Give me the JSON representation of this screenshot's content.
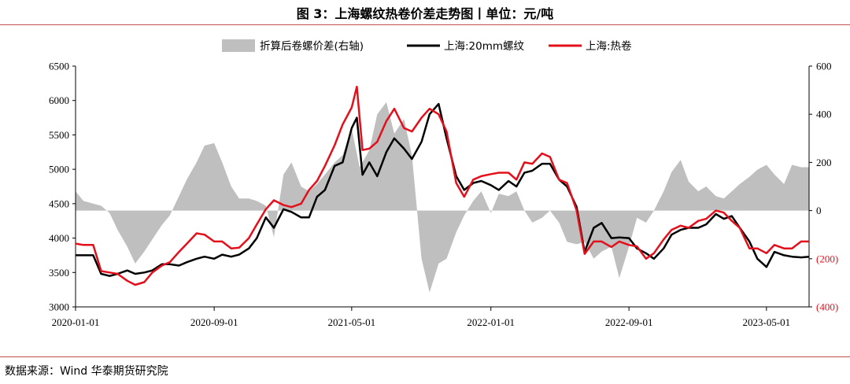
{
  "title": "图 3：上海螺纹热卷价差走势图丨单位：元/吨",
  "source": "数据来源：Wind  华泰期货研究院",
  "colors": {
    "area": "#bfbfbf",
    "rebar": "#000000",
    "hrc": "#e3101c",
    "rule": "#c0504d"
  },
  "chart_data": {
    "type": "line",
    "x_range": [
      "2020-01-01",
      "2023-07-15"
    ],
    "x_ticks": [
      "2020-01-01",
      "2020-09-01",
      "2021-05-01",
      "2022-01-01",
      "2022-09-01",
      "2023-05-01"
    ],
    "y_left": {
      "min": 3000,
      "max": 6500,
      "ticks": [
        "3000",
        "3500",
        "4000",
        "4500",
        "5000",
        "5500",
        "6000",
        "6500"
      ]
    },
    "y_right": {
      "min": -400,
      "max": 600,
      "ticks": [
        {
          "value": 600,
          "label": "600"
        },
        {
          "value": 400,
          "label": "400"
        },
        {
          "value": 200,
          "label": "200"
        },
        {
          "value": 0,
          "label": "0"
        },
        {
          "value": -200,
          "label": "(200)"
        },
        {
          "value": -400,
          "label": "(400)"
        }
      ]
    },
    "legend": [
      "折算后卷螺价差(右轴)",
      "上海:20mm螺纹",
      "上海:热卷"
    ],
    "series": [
      {
        "name": "折算后卷螺价差(右轴)",
        "axis": "right",
        "kind": "area",
        "points": [
          [
            "2020-01-01",
            80
          ],
          [
            "2020-01-15",
            40
          ],
          [
            "2020-02-15",
            20
          ],
          [
            "2020-03-01",
            -10
          ],
          [
            "2020-03-15",
            -80
          ],
          [
            "2020-04-01",
            -150
          ],
          [
            "2020-04-15",
            -220
          ],
          [
            "2020-05-01",
            -170
          ],
          [
            "2020-05-15",
            -120
          ],
          [
            "2020-06-01",
            -60
          ],
          [
            "2020-06-15",
            -20
          ],
          [
            "2020-07-01",
            60
          ],
          [
            "2020-07-15",
            130
          ],
          [
            "2020-08-01",
            200
          ],
          [
            "2020-08-15",
            270
          ],
          [
            "2020-09-01",
            280
          ],
          [
            "2020-09-15",
            200
          ],
          [
            "2020-10-01",
            100
          ],
          [
            "2020-10-15",
            50
          ],
          [
            "2020-11-01",
            50
          ],
          [
            "2020-11-15",
            40
          ],
          [
            "2020-12-01",
            20
          ],
          [
            "2020-12-15",
            -110
          ],
          [
            "2021-01-01",
            150
          ],
          [
            "2021-01-15",
            200
          ],
          [
            "2021-02-01",
            100
          ],
          [
            "2021-02-15",
            80
          ],
          [
            "2021-03-01",
            110
          ],
          [
            "2021-03-15",
            150
          ],
          [
            "2021-04-01",
            200
          ],
          [
            "2021-04-15",
            230
          ],
          [
            "2021-05-01",
            340
          ],
          [
            "2021-05-15",
            180
          ],
          [
            "2021-06-01",
            250
          ],
          [
            "2021-06-15",
            400
          ],
          [
            "2021-07-01",
            450
          ],
          [
            "2021-07-15",
            320
          ],
          [
            "2021-08-01",
            380
          ],
          [
            "2021-08-15",
            230
          ],
          [
            "2021-09-01",
            -200
          ],
          [
            "2021-09-15",
            -340
          ],
          [
            "2021-10-01",
            -220
          ],
          [
            "2021-10-15",
            -200
          ],
          [
            "2021-11-01",
            -90
          ],
          [
            "2021-11-15",
            -20
          ],
          [
            "2021-12-01",
            40
          ],
          [
            "2021-12-15",
            80
          ],
          [
            "2022-01-01",
            -10
          ],
          [
            "2022-01-15",
            70
          ],
          [
            "2022-02-01",
            60
          ],
          [
            "2022-02-15",
            80
          ],
          [
            "2022-03-01",
            0
          ],
          [
            "2022-03-15",
            -50
          ],
          [
            "2022-04-01",
            -30
          ],
          [
            "2022-04-15",
            0
          ],
          [
            "2022-05-01",
            -50
          ],
          [
            "2022-05-15",
            -130
          ],
          [
            "2022-06-01",
            -140
          ],
          [
            "2022-06-15",
            -130
          ],
          [
            "2022-07-01",
            -200
          ],
          [
            "2022-07-15",
            -170
          ],
          [
            "2022-08-01",
            -150
          ],
          [
            "2022-08-15",
            -280
          ],
          [
            "2022-09-01",
            -150
          ],
          [
            "2022-09-15",
            -30
          ],
          [
            "2022-10-01",
            -50
          ],
          [
            "2022-10-15",
            0
          ],
          [
            "2022-11-01",
            80
          ],
          [
            "2022-11-15",
            160
          ],
          [
            "2022-12-01",
            210
          ],
          [
            "2022-12-15",
            120
          ],
          [
            "2023-01-01",
            80
          ],
          [
            "2023-01-15",
            100
          ],
          [
            "2023-02-01",
            60
          ],
          [
            "2023-02-15",
            50
          ],
          [
            "2023-03-01",
            80
          ],
          [
            "2023-03-15",
            110
          ],
          [
            "2023-04-01",
            140
          ],
          [
            "2023-04-15",
            170
          ],
          [
            "2023-05-01",
            190
          ],
          [
            "2023-05-15",
            150
          ],
          [
            "2023-06-01",
            110
          ],
          [
            "2023-06-15",
            190
          ],
          [
            "2023-07-01",
            180
          ],
          [
            "2023-07-15",
            180
          ]
        ]
      },
      {
        "name": "上海:20mm螺纹",
        "axis": "left",
        "kind": "line",
        "points": [
          [
            "2020-01-01",
            3750
          ],
          [
            "2020-01-15",
            3750
          ],
          [
            "2020-02-01",
            3750
          ],
          [
            "2020-02-15",
            3480
          ],
          [
            "2020-03-01",
            3450
          ],
          [
            "2020-03-15",
            3480
          ],
          [
            "2020-04-01",
            3530
          ],
          [
            "2020-04-15",
            3480
          ],
          [
            "2020-05-01",
            3500
          ],
          [
            "2020-05-15",
            3530
          ],
          [
            "2020-06-01",
            3620
          ],
          [
            "2020-06-15",
            3620
          ],
          [
            "2020-07-01",
            3600
          ],
          [
            "2020-07-15",
            3650
          ],
          [
            "2020-08-01",
            3700
          ],
          [
            "2020-08-15",
            3730
          ],
          [
            "2020-09-01",
            3700
          ],
          [
            "2020-09-15",
            3760
          ],
          [
            "2020-10-01",
            3730
          ],
          [
            "2020-10-15",
            3760
          ],
          [
            "2020-11-01",
            3850
          ],
          [
            "2020-11-15",
            4000
          ],
          [
            "2020-12-01",
            4300
          ],
          [
            "2020-12-15",
            4150
          ],
          [
            "2021-01-01",
            4420
          ],
          [
            "2021-01-15",
            4380
          ],
          [
            "2021-02-01",
            4300
          ],
          [
            "2021-02-15",
            4300
          ],
          [
            "2021-03-01",
            4600
          ],
          [
            "2021-03-15",
            4700
          ],
          [
            "2021-04-01",
            5050
          ],
          [
            "2021-04-15",
            5100
          ],
          [
            "2021-05-01",
            5600
          ],
          [
            "2021-05-10",
            5750
          ],
          [
            "2021-05-20",
            4920
          ],
          [
            "2021-06-01",
            5100
          ],
          [
            "2021-06-15",
            4900
          ],
          [
            "2021-07-01",
            5250
          ],
          [
            "2021-07-15",
            5450
          ],
          [
            "2021-08-01",
            5300
          ],
          [
            "2021-08-15",
            5150
          ],
          [
            "2021-09-01",
            5400
          ],
          [
            "2021-09-15",
            5800
          ],
          [
            "2021-10-01",
            5950
          ],
          [
            "2021-10-15",
            5450
          ],
          [
            "2021-11-01",
            4900
          ],
          [
            "2021-11-15",
            4700
          ],
          [
            "2021-12-01",
            4800
          ],
          [
            "2021-12-15",
            4830
          ],
          [
            "2022-01-01",
            4770
          ],
          [
            "2022-01-15",
            4700
          ],
          [
            "2022-02-01",
            4830
          ],
          [
            "2022-02-15",
            4750
          ],
          [
            "2022-03-01",
            4950
          ],
          [
            "2022-03-15",
            4980
          ],
          [
            "2022-04-01",
            5080
          ],
          [
            "2022-04-15",
            5080
          ],
          [
            "2022-05-01",
            4850
          ],
          [
            "2022-05-15",
            4750
          ],
          [
            "2022-06-01",
            4450
          ],
          [
            "2022-06-15",
            3800
          ],
          [
            "2022-07-01",
            4150
          ],
          [
            "2022-07-15",
            4220
          ],
          [
            "2022-08-01",
            4000
          ],
          [
            "2022-08-15",
            4010
          ],
          [
            "2022-09-01",
            4000
          ],
          [
            "2022-09-15",
            3850
          ],
          [
            "2022-10-01",
            3780
          ],
          [
            "2022-10-15",
            3700
          ],
          [
            "2022-11-01",
            3850
          ],
          [
            "2022-11-15",
            4050
          ],
          [
            "2022-12-01",
            4120
          ],
          [
            "2022-12-15",
            4150
          ],
          [
            "2023-01-01",
            4150
          ],
          [
            "2023-01-15",
            4200
          ],
          [
            "2023-02-01",
            4350
          ],
          [
            "2023-02-15",
            4280
          ],
          [
            "2023-03-01",
            4320
          ],
          [
            "2023-03-15",
            4150
          ],
          [
            "2023-04-01",
            3950
          ],
          [
            "2023-04-15",
            3700
          ],
          [
            "2023-05-01",
            3580
          ],
          [
            "2023-05-15",
            3800
          ],
          [
            "2023-06-01",
            3750
          ],
          [
            "2023-06-15",
            3730
          ],
          [
            "2023-07-01",
            3720
          ],
          [
            "2023-07-15",
            3730
          ]
        ]
      },
      {
        "name": "上海:热卷",
        "axis": "left",
        "kind": "line",
        "points": [
          [
            "2020-01-01",
            3920
          ],
          [
            "2020-01-15",
            3900
          ],
          [
            "2020-02-01",
            3900
          ],
          [
            "2020-02-15",
            3520
          ],
          [
            "2020-03-01",
            3500
          ],
          [
            "2020-03-15",
            3480
          ],
          [
            "2020-04-01",
            3380
          ],
          [
            "2020-04-15",
            3320
          ],
          [
            "2020-05-01",
            3360
          ],
          [
            "2020-05-15",
            3500
          ],
          [
            "2020-06-01",
            3600
          ],
          [
            "2020-06-15",
            3650
          ],
          [
            "2020-07-01",
            3800
          ],
          [
            "2020-07-15",
            3920
          ],
          [
            "2020-08-01",
            4070
          ],
          [
            "2020-08-15",
            4050
          ],
          [
            "2020-09-01",
            3950
          ],
          [
            "2020-09-15",
            3950
          ],
          [
            "2020-10-01",
            3850
          ],
          [
            "2020-10-15",
            3860
          ],
          [
            "2020-11-01",
            4000
          ],
          [
            "2020-11-15",
            4200
          ],
          [
            "2020-12-01",
            4420
          ],
          [
            "2020-12-15",
            4550
          ],
          [
            "2021-01-01",
            4480
          ],
          [
            "2021-01-15",
            4450
          ],
          [
            "2021-02-01",
            4500
          ],
          [
            "2021-02-15",
            4700
          ],
          [
            "2021-03-01",
            4830
          ],
          [
            "2021-03-15",
            5050
          ],
          [
            "2021-04-01",
            5350
          ],
          [
            "2021-04-15",
            5650
          ],
          [
            "2021-05-01",
            5900
          ],
          [
            "2021-05-10",
            6200
          ],
          [
            "2021-05-20",
            5280
          ],
          [
            "2021-06-01",
            5300
          ],
          [
            "2021-06-15",
            5400
          ],
          [
            "2021-07-01",
            5700
          ],
          [
            "2021-07-15",
            5880
          ],
          [
            "2021-08-01",
            5600
          ],
          [
            "2021-08-15",
            5550
          ],
          [
            "2021-09-01",
            5750
          ],
          [
            "2021-09-15",
            5880
          ],
          [
            "2021-10-01",
            5800
          ],
          [
            "2021-10-15",
            5550
          ],
          [
            "2021-11-01",
            4800
          ],
          [
            "2021-11-15",
            4600
          ],
          [
            "2021-12-01",
            4850
          ],
          [
            "2021-12-15",
            4900
          ],
          [
            "2022-01-01",
            4930
          ],
          [
            "2022-01-15",
            4950
          ],
          [
            "2022-02-01",
            4950
          ],
          [
            "2022-02-15",
            4850
          ],
          [
            "2022-03-01",
            5100
          ],
          [
            "2022-03-15",
            5080
          ],
          [
            "2022-04-01",
            5230
          ],
          [
            "2022-04-15",
            5180
          ],
          [
            "2022-05-01",
            4850
          ],
          [
            "2022-05-15",
            4800
          ],
          [
            "2022-06-01",
            4400
          ],
          [
            "2022-06-15",
            3770
          ],
          [
            "2022-07-01",
            3950
          ],
          [
            "2022-07-15",
            3950
          ],
          [
            "2022-08-01",
            3870
          ],
          [
            "2022-08-15",
            3950
          ],
          [
            "2022-09-01",
            3900
          ],
          [
            "2022-09-15",
            3880
          ],
          [
            "2022-10-01",
            3700
          ],
          [
            "2022-10-15",
            3780
          ],
          [
            "2022-11-01",
            3980
          ],
          [
            "2022-11-15",
            4120
          ],
          [
            "2022-12-01",
            4180
          ],
          [
            "2022-12-15",
            4150
          ],
          [
            "2023-01-01",
            4250
          ],
          [
            "2023-01-15",
            4280
          ],
          [
            "2023-02-01",
            4400
          ],
          [
            "2023-02-15",
            4370
          ],
          [
            "2023-03-01",
            4250
          ],
          [
            "2023-03-15",
            4150
          ],
          [
            "2023-04-01",
            3850
          ],
          [
            "2023-04-15",
            3850
          ],
          [
            "2023-05-01",
            3780
          ],
          [
            "2023-05-15",
            3900
          ],
          [
            "2023-06-01",
            3850
          ],
          [
            "2023-06-15",
            3850
          ],
          [
            "2023-07-01",
            3950
          ],
          [
            "2023-07-15",
            3950
          ]
        ]
      }
    ]
  }
}
